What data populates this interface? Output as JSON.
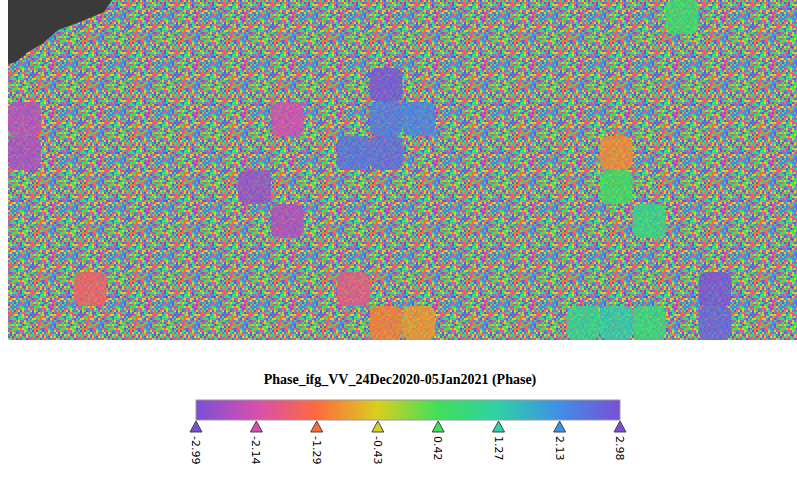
{
  "chart_data": {
    "type": "heatmap",
    "title": "Phase_ifg_VV_24Dec2020-05Jan2021 (Phase)",
    "tick_labels": false,
    "cells": [
      [
        null,
        null,
        null,
        null,
        null,
        null,
        null,
        null,
        null,
        null,
        null,
        null,
        null,
        null,
        null,
        null,
        null,
        null,
        null,
        null,
        0.6,
        null,
        null,
        null
      ],
      [
        null,
        null,
        null,
        null,
        null,
        null,
        null,
        null,
        null,
        null,
        null,
        null,
        null,
        null,
        null,
        null,
        null,
        null,
        null,
        null,
        null,
        null,
        null,
        null
      ],
      [
        null,
        null,
        null,
        null,
        null,
        null,
        null,
        null,
        null,
        null,
        null,
        2.9,
        null,
        null,
        null,
        null,
        null,
        null,
        null,
        null,
        null,
        null,
        null,
        null
      ],
      [
        -2.4,
        null,
        null,
        null,
        null,
        null,
        null,
        null,
        -2.2,
        null,
        null,
        2.4,
        2.3,
        null,
        null,
        null,
        null,
        null,
        null,
        null,
        null,
        null,
        null,
        null
      ],
      [
        -2.5,
        null,
        null,
        null,
        null,
        null,
        null,
        null,
        null,
        null,
        2.5,
        2.6,
        null,
        null,
        null,
        null,
        null,
        null,
        -1.0,
        null,
        null,
        null,
        null,
        null
      ],
      [
        null,
        null,
        null,
        null,
        null,
        null,
        null,
        -2.7,
        null,
        null,
        null,
        null,
        null,
        null,
        null,
        null,
        null,
        null,
        0.5,
        null,
        null,
        null,
        null,
        null
      ],
      [
        null,
        null,
        null,
        null,
        null,
        null,
        null,
        null,
        -2.5,
        null,
        null,
        null,
        null,
        null,
        null,
        null,
        null,
        null,
        null,
        0.9,
        null,
        null,
        null,
        null
      ],
      [
        null,
        null,
        null,
        null,
        null,
        null,
        null,
        null,
        null,
        null,
        null,
        null,
        null,
        null,
        null,
        null,
        null,
        null,
        null,
        null,
        null,
        null,
        null,
        null
      ],
      [
        null,
        null,
        -1.6,
        null,
        null,
        null,
        null,
        null,
        null,
        null,
        -1.8,
        null,
        null,
        null,
        null,
        null,
        null,
        null,
        null,
        null,
        null,
        2.9,
        null,
        null
      ],
      [
        null,
        null,
        null,
        null,
        null,
        null,
        null,
        null,
        null,
        null,
        null,
        -1.1,
        -0.9,
        null,
        null,
        null,
        null,
        1.0,
        1.3,
        0.8,
        null,
        2.7,
        null,
        null
      ]
    ],
    "colorbar": {
      "range": [
        -2.99,
        2.98
      ],
      "ticks": [
        -2.99,
        -2.14,
        -1.29,
        -0.43,
        0.42,
        1.27,
        2.13,
        2.98
      ],
      "colors": [
        "#7a4fd6",
        "#d64fb0",
        "#ff6a3d",
        "#d9cf1f",
        "#3fe05a",
        "#2fd0a6",
        "#3f8fe6",
        "#7a4fd6"
      ]
    }
  }
}
